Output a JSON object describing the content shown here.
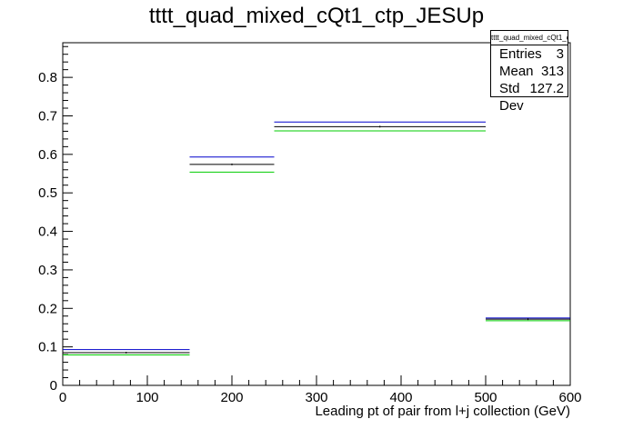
{
  "chart_data": {
    "type": "histogram",
    "title": "tttt_quad_mixed_cQt1_ctp_JESUp",
    "xlabel": "Leading pt of pair from l+j collection (GeV)",
    "ylabel": "",
    "xlim": [
      0,
      600
    ],
    "ylim": [
      0,
      0.89
    ],
    "x_ticks": [
      0,
      100,
      200,
      300,
      400,
      500,
      600
    ],
    "y_ticks": [
      0,
      0.1,
      0.2,
      0.3,
      0.4,
      0.5,
      0.6,
      0.7,
      0.8
    ],
    "bin_edges": [
      0,
      150,
      250,
      500,
      600
    ],
    "series": [
      {
        "color": "#0000cc",
        "values": [
          0.093,
          0.593,
          0.684,
          0.175
        ]
      },
      {
        "color": "#000000",
        "values": [
          0.085,
          0.574,
          0.672,
          0.172
        ]
      },
      {
        "color": "#00cc00",
        "values": [
          0.079,
          0.554,
          0.661,
          0.168
        ]
      }
    ],
    "stats": {
      "name": "tttt_quad_mixed_cQt1_ctp_JESUp",
      "rows": [
        {
          "label": "Entries",
          "value": "3"
        },
        {
          "label": "Mean",
          "value": "313"
        },
        {
          "label": "Std Dev",
          "value": "127.2"
        }
      ]
    }
  }
}
